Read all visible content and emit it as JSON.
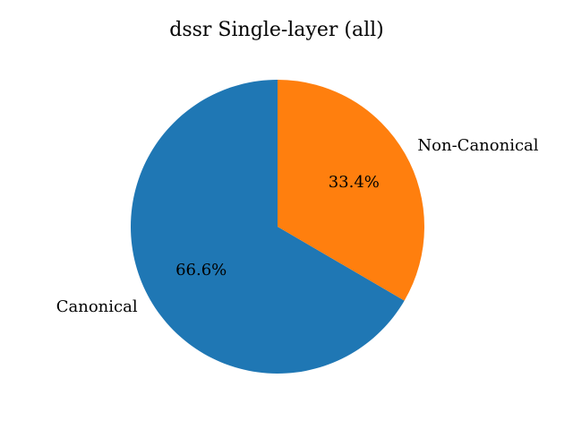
{
  "chart_data": {
    "type": "pie",
    "title": "dssr Single-layer (all)",
    "labels": [
      "Canonical",
      "Non-Canonical"
    ],
    "values": [
      66.6,
      33.4
    ],
    "value_labels": [
      "66.6%",
      "33.4%"
    ],
    "colors": [
      "#1f77b4",
      "#ff7f0e"
    ],
    "start_angle_deg": 90,
    "direction": "clockwise-from-top-for-second-slice"
  }
}
